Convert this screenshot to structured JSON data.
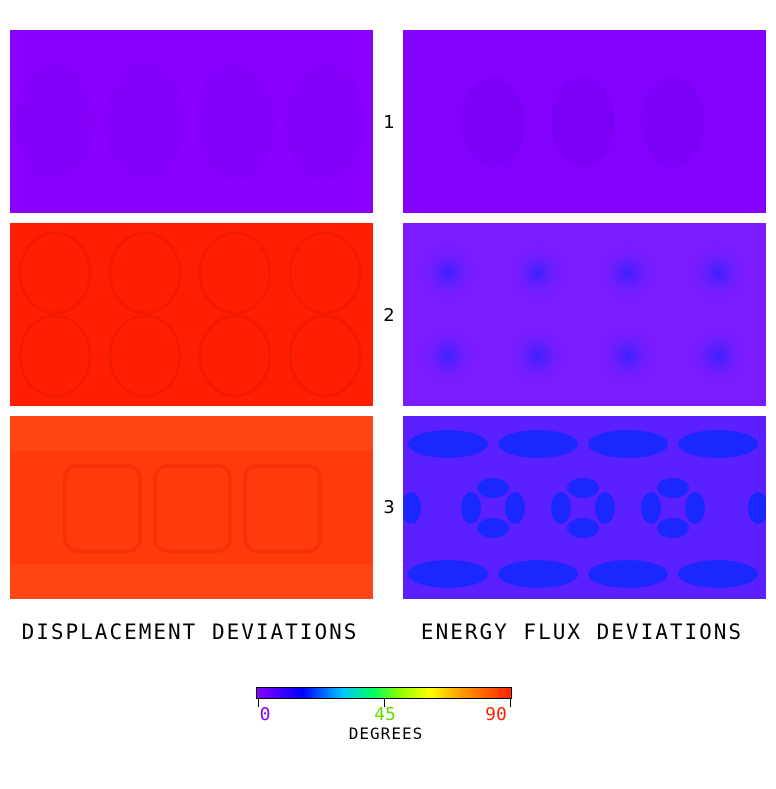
{
  "chart_data": {
    "type": "heatmap",
    "colorbar": {
      "ticks": [
        0,
        45,
        90
      ],
      "tick_labels": [
        "0",
        "45",
        "90"
      ],
      "tick_colors": [
        "#8800ff",
        "#66dd00",
        "#ff2200"
      ],
      "label": "DEGREES",
      "range": [
        0,
        90
      ]
    },
    "columns": [
      "DISPLACEMENT DEVIATIONS",
      "ENERGY FLUX DEVIATIONS"
    ],
    "rows": [
      "1",
      "2",
      "3"
    ],
    "panels": [
      {
        "row": "1",
        "column": "DISPLACEMENT DEVIATIONS",
        "base_color": "#8a00ff",
        "approx_value_deg": 2
      },
      {
        "row": "1",
        "column": "ENERGY FLUX DEVIATIONS",
        "base_color": "#8400ff",
        "approx_value_deg": 3
      },
      {
        "row": "2",
        "column": "DISPLACEMENT DEVIATIONS",
        "base_color": "#ff1e00",
        "approx_value_deg": 88
      },
      {
        "row": "2",
        "column": "ENERGY FLUX DEVIATIONS",
        "base_color": "#7a1cff",
        "approx_value_deg": 8
      },
      {
        "row": "3",
        "column": "DISPLACEMENT DEVIATIONS",
        "base_color": "#ff3a0c",
        "approx_value_deg": 86
      },
      {
        "row": "3",
        "column": "ENERGY FLUX DEVIATIONS",
        "base_color": "#5a20ff",
        "approx_value_deg": 12
      }
    ]
  }
}
